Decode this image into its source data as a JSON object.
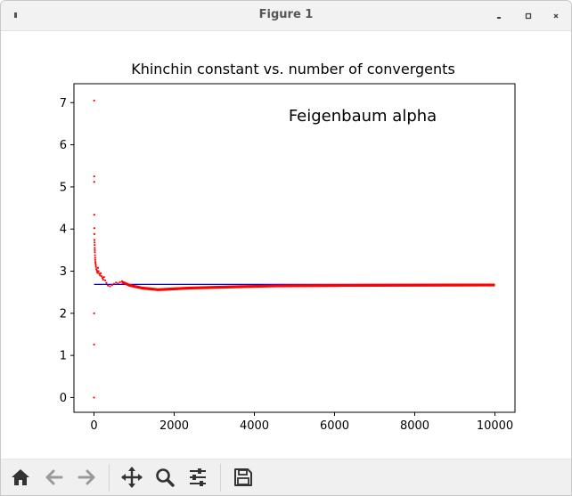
{
  "window": {
    "title": "Figure 1"
  },
  "toolbar": {
    "icons": [
      "home-icon",
      "back-arrow-icon",
      "forward-arrow-icon",
      "pan-icon",
      "zoom-icon",
      "configure-subplots-icon",
      "save-icon"
    ]
  },
  "chart_data": {
    "type": "scatter",
    "title": "Khinchin constant vs. number of convergents",
    "annotation": "Feigenbaum alpha",
    "xlim": [
      -500,
      10500
    ],
    "ylim": [
      -0.35,
      7.45
    ],
    "xticks": [
      0,
      2000,
      4000,
      6000,
      8000,
      10000
    ],
    "yticks": [
      0,
      1,
      2,
      3,
      4,
      5,
      6,
      7
    ],
    "grid": false,
    "reference_line": {
      "y": 2.685452,
      "x_range": [
        0,
        10000
      ],
      "color": "#0000ff"
    },
    "scatter_color": "#ff0000",
    "early_points": [
      [
        1,
        0
      ],
      [
        2,
        1.26
      ],
      [
        3,
        2.0
      ],
      [
        4,
        7.05
      ],
      [
        5,
        5.25
      ],
      [
        6,
        5.12
      ],
      [
        7,
        4.34
      ],
      [
        8,
        4.02
      ],
      [
        10,
        3.88
      ],
      [
        12,
        3.74
      ],
      [
        14,
        3.68
      ],
      [
        16,
        3.62
      ],
      [
        18,
        3.55
      ],
      [
        20,
        3.5
      ],
      [
        22,
        3.45
      ],
      [
        25,
        3.38
      ],
      [
        28,
        3.32
      ],
      [
        31,
        3.27
      ],
      [
        35,
        3.22
      ],
      [
        40,
        3.18
      ],
      [
        45,
        3.14
      ],
      [
        50,
        3.1
      ],
      [
        60,
        3.05
      ],
      [
        70,
        3.02
      ],
      [
        80,
        2.98
      ],
      [
        90,
        2.96
      ],
      [
        100,
        3.08
      ],
      [
        115,
        3.0
      ],
      [
        130,
        2.94
      ],
      [
        150,
        2.9
      ],
      [
        170,
        2.95
      ],
      [
        190,
        2.88
      ],
      [
        210,
        2.84
      ],
      [
        230,
        2.8
      ],
      [
        250,
        2.86
      ],
      [
        280,
        2.78
      ],
      [
        310,
        2.72
      ],
      [
        350,
        2.66
      ],
      [
        400,
        2.64
      ],
      [
        450,
        2.67
      ],
      [
        500,
        2.7
      ],
      [
        550,
        2.73
      ],
      [
        600,
        2.71
      ],
      [
        650,
        2.74
      ],
      [
        700,
        2.76
      ]
    ],
    "trend": [
      [
        700,
        2.74
      ],
      [
        800,
        2.7
      ],
      [
        900,
        2.66
      ],
      [
        1000,
        2.64
      ],
      [
        1200,
        2.6
      ],
      [
        1400,
        2.58
      ],
      [
        1600,
        2.56
      ],
      [
        1800,
        2.57
      ],
      [
        2000,
        2.58
      ],
      [
        2400,
        2.6
      ],
      [
        2800,
        2.61
      ],
      [
        3200,
        2.62
      ],
      [
        3600,
        2.63
      ],
      [
        4000,
        2.64
      ],
      [
        4500,
        2.65
      ],
      [
        5000,
        2.655
      ],
      [
        6000,
        2.66
      ],
      [
        7000,
        2.665
      ],
      [
        8000,
        2.668
      ],
      [
        9000,
        2.67
      ],
      [
        10000,
        2.672
      ]
    ]
  }
}
